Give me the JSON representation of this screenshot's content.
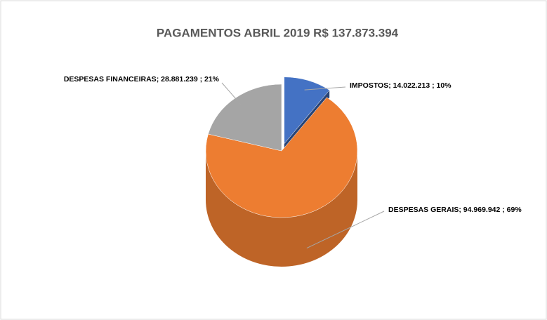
{
  "chart_data": {
    "type": "pie",
    "title": "PAGAMENTOS ABRIL 2019 R$ 137.873.394",
    "categories": [
      "IMPOSTOS",
      "DESPESAS GERAIS",
      "DESPESAS FINANCEIRAS"
    ],
    "values": [
      14022213,
      94969942,
      28881239
    ],
    "value_labels": [
      "; 14.022.213 ; 10%",
      "; 94.969.942 ; 69%",
      "; 28.881.239 ; 21%"
    ],
    "colors": [
      "#4472c4",
      "#ed7d31",
      "#a5a5a5"
    ]
  }
}
